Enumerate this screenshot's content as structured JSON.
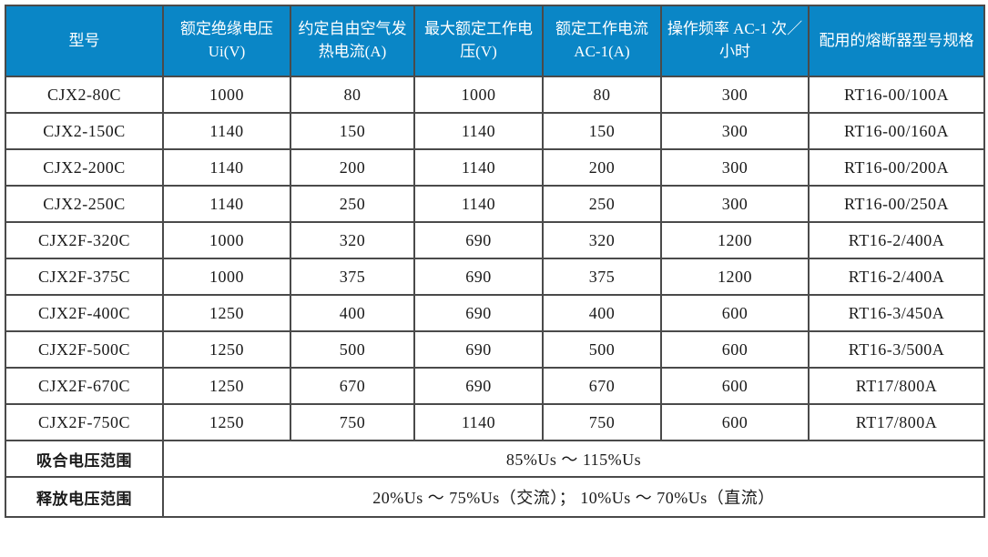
{
  "colors": {
    "header_bg": "#0a86c6",
    "header_text": "#ffffff",
    "border": "#4a4a4a",
    "outer_border": "#1f1f1f",
    "body_text": "#1a1a1a"
  },
  "table": {
    "columns": [
      "型号",
      "额定绝缘电压 Ui(V)",
      "约定自由空气发热电流(A)",
      "最大额定工作电压(V)",
      "额定工作电流 AC-1(A)",
      "操作频率 AC-1 次／小时",
      "配用的熔断器型号规格"
    ],
    "rows": [
      [
        "CJX2-80C",
        "1000",
        "80",
        "1000",
        "80",
        "300",
        "RT16-00/100A"
      ],
      [
        "CJX2-150C",
        "1140",
        "150",
        "1140",
        "150",
        "300",
        "RT16-00/160A"
      ],
      [
        "CJX2-200C",
        "1140",
        "200",
        "1140",
        "200",
        "300",
        "RT16-00/200A"
      ],
      [
        "CJX2-250C",
        "1140",
        "250",
        "1140",
        "250",
        "300",
        "RT16-00/250A"
      ],
      [
        "CJX2F-320C",
        "1000",
        "320",
        "690",
        "320",
        "1200",
        "RT16-2/400A"
      ],
      [
        "CJX2F-375C",
        "1000",
        "375",
        "690",
        "375",
        "1200",
        "RT16-2/400A"
      ],
      [
        "CJX2F-400C",
        "1250",
        "400",
        "690",
        "400",
        "600",
        "RT16-3/450A"
      ],
      [
        "CJX2F-500C",
        "1250",
        "500",
        "690",
        "500",
        "600",
        "RT16-3/500A"
      ],
      [
        "CJX2F-670C",
        "1250",
        "670",
        "690",
        "670",
        "600",
        "RT17/800A"
      ],
      [
        "CJX2F-750C",
        "1250",
        "750",
        "1140",
        "750",
        "600",
        "RT17/800A"
      ]
    ],
    "footer_rows": [
      {
        "label": "吸合电压范围",
        "value": "85%Us ～ 115%Us"
      },
      {
        "label": "释放电压范围",
        "value": "20%Us ～ 75%Us（交流）； 10%Us ～ 70%Us（直流）"
      }
    ]
  }
}
